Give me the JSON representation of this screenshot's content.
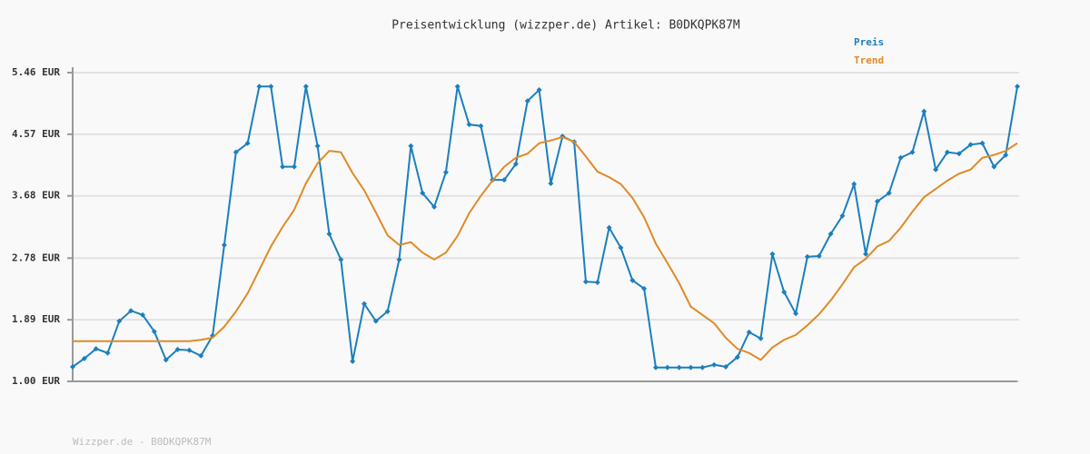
{
  "chart_data": {
    "type": "line",
    "title": "Preisentwicklung (wizzper.de) Artikel: B0DKQPK87M",
    "footer": "Wizzper.de - B0DKQPK87M",
    "legend": "top-right",
    "grid": true,
    "ylim": [
      1.0,
      5.46
    ],
    "yticks": [
      {
        "value": 1.0,
        "label": "1.00 EUR"
      },
      {
        "value": 1.89,
        "label": "1.89 EUR"
      },
      {
        "value": 2.78,
        "label": "2.78 EUR"
      },
      {
        "value": 3.68,
        "label": "3.68 EUR"
      },
      {
        "value": 4.57,
        "label": "4.57 EUR"
      },
      {
        "value": 5.46,
        "label": "5.46 EUR"
      }
    ],
    "series": [
      {
        "name": "Preis",
        "color": "#1b7fbd",
        "markers": true,
        "values": [
          1.21,
          1.33,
          1.47,
          1.41,
          1.87,
          2.02,
          1.96,
          1.72,
          1.31,
          1.46,
          1.45,
          1.37,
          1.66,
          2.97,
          4.31,
          4.44,
          5.26,
          5.26,
          4.1,
          4.1,
          5.26,
          4.4,
          3.13,
          2.76,
          1.29,
          2.12,
          1.87,
          2.01,
          2.76,
          4.4,
          3.72,
          3.52,
          4.02,
          5.26,
          4.71,
          4.69,
          3.91,
          3.91,
          4.14,
          5.05,
          5.21,
          3.86,
          4.54,
          4.46,
          2.44,
          2.43,
          3.22,
          2.93,
          2.46,
          2.34,
          1.2,
          1.2,
          1.2,
          1.2,
          1.2,
          1.24,
          1.21,
          1.35,
          1.71,
          1.62,
          2.84,
          2.29,
          1.98,
          2.8,
          2.81,
          3.13,
          3.39,
          3.85,
          2.84,
          3.6,
          3.72,
          4.23,
          4.31,
          4.9,
          4.06,
          4.31,
          4.29,
          4.42,
          4.44,
          4.1,
          4.27,
          5.26
        ]
      },
      {
        "name": "Trend",
        "color": "#e08a26",
        "markers": false,
        "values": [
          1.58,
          1.58,
          1.58,
          1.58,
          1.58,
          1.58,
          1.58,
          1.58,
          1.58,
          1.58,
          1.58,
          1.6,
          1.63,
          1.79,
          2.01,
          2.27,
          2.61,
          2.95,
          3.23,
          3.48,
          3.86,
          4.15,
          4.33,
          4.31,
          4.01,
          3.76,
          3.44,
          3.11,
          2.97,
          3.01,
          2.86,
          2.76,
          2.86,
          3.1,
          3.43,
          3.68,
          3.9,
          4.1,
          4.23,
          4.29,
          4.44,
          4.48,
          4.53,
          4.46,
          4.25,
          4.03,
          3.95,
          3.85,
          3.65,
          3.37,
          2.99,
          2.71,
          2.42,
          2.08,
          1.96,
          1.84,
          1.63,
          1.47,
          1.41,
          1.31,
          1.49,
          1.6,
          1.67,
          1.81,
          1.97,
          2.17,
          2.4,
          2.65,
          2.77,
          2.95,
          3.03,
          3.22,
          3.45,
          3.66,
          3.78,
          3.9,
          4.0,
          4.06,
          4.23,
          4.27,
          4.33,
          4.44
        ]
      }
    ]
  }
}
